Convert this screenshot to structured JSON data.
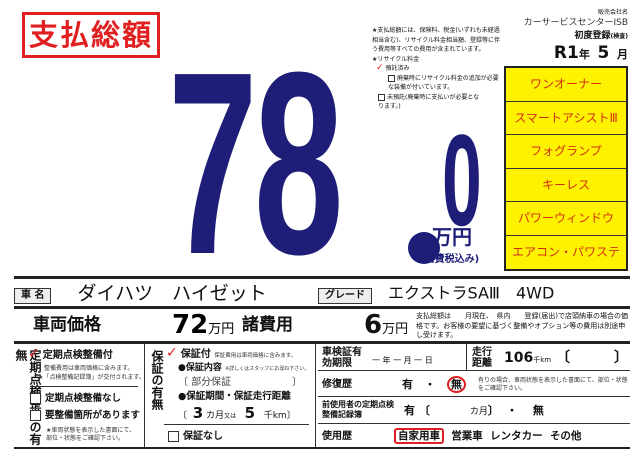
{
  "title": "支払総額",
  "total": {
    "integer": "78",
    "decimal": "0",
    "unit": "万円",
    "tax_note": "(消費税込み)"
  },
  "notes": {
    "total_note": "★支払総額には、保険料、税金(いずれも未経過相当含む)、リサイクル料金相当額、登録等に伴う費用等すべての費用が含まれています。",
    "recycle_label": "★リサイクル料金",
    "recycle_options": [
      "預託済み",
      "廃棄時にリサイクル料金の追加が必要な装備が付いています。",
      "未預託(廃棄時に支払いが必要となります。)"
    ],
    "recycle_checked": 0
  },
  "dealer": {
    "label": "販売会社名",
    "name": "カーサービスセンターISB"
  },
  "first_registration": {
    "label": "初度登録",
    "label_sub": "(検査)",
    "era_year": "R1",
    "year_unit": "年",
    "month": "5",
    "month_unit": "月"
  },
  "features": [
    "ワンオーナー",
    "スマートアシストⅢ",
    "フォグランプ",
    "キーレス",
    "パワーウィンドウ",
    "エアコン・パワステ"
  ],
  "car": {
    "name_label": "車 名",
    "name": "ダイハツ　ハイゼット",
    "grade_label": "グレード",
    "grade": "エクストラSAⅢ　4WD"
  },
  "price": {
    "vehicle_label": "車両価格",
    "vehicle_value": "72",
    "unit": "万円",
    "fees_label": "諸費用",
    "fees_value": "6",
    "fees_note": "支払総額は　　月現在、　県内　　登録(届出)で店頭納車の場合の価格です。お客様の要望に基づく整備やオプション等の費用は別途申し受けます。"
  },
  "inspection": {
    "heading": "定期点検整備の有無",
    "with": "定期点検整備付",
    "with_note1": "整備費用は車両価格に含みます。",
    "with_note2": "★「点検整備記録簿」が交付されます。",
    "without": "定期点検整備なし",
    "needs": "要整備箇所があります",
    "needs_note": "★車両状態を表示した書面にて、部位・状態をご確認下さい。",
    "checked": "with"
  },
  "warranty": {
    "heading": "保証の有無",
    "with": "保証付",
    "with_note": "保証費用は車両価格に含みます。",
    "content_label": "●保証内容",
    "content_note": "※詳しくはスタッフにお尋ね下さい。",
    "content": "部分保証",
    "period_label": "●保証期間・保証走行距離",
    "months": "3",
    "months_unit": "カ月",
    "or": "又は",
    "distance": "5",
    "distance_unit": "千km",
    "without": "保証なし",
    "checked": "with"
  },
  "details": {
    "shaken_label": "車検証有効期限",
    "shaken_value": "一 年 一 月 一 日",
    "mileage_label": "走行距離",
    "mileage_value": "106",
    "mileage_unit": "千km",
    "repair_label": "修復歴",
    "repair_yes": "有",
    "repair_sep": "・",
    "repair_no": "無",
    "repair_selected": "無",
    "repair_note": "有りの場合、車両状態を表示した書面にて、部位・状態をご確認下さい。",
    "record_label": "前使用者の定期点検整備記録簿",
    "record_yes": "有",
    "record_months": "カ月",
    "record_sep": "・",
    "record_no": "無",
    "usage_label": "使用歴",
    "usage_options": [
      "自家用車",
      "営業車",
      "レンタカー",
      "その他"
    ],
    "usage_selected": "自家用車"
  },
  "colors": {
    "accent_red": "#e02020",
    "navy": "#1e1e78",
    "feature_bg": "#fff200"
  }
}
